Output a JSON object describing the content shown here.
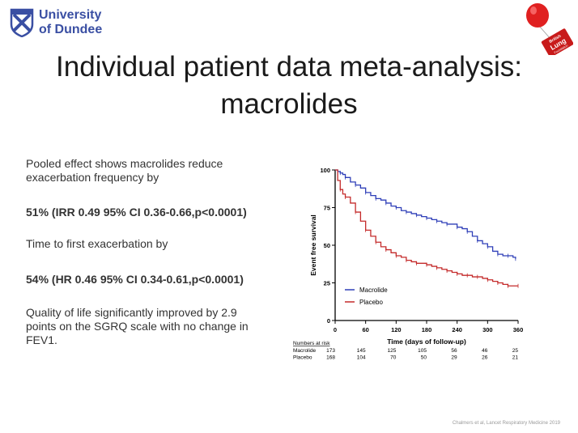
{
  "header": {
    "university_line1": "University",
    "university_line2": "of Dundee",
    "blf_line1": "British",
    "blf_line2": "Lung",
    "blf_line3": "Foundation"
  },
  "title": {
    "line1": "Individual patient data meta-analysis:",
    "line2": "macrolides"
  },
  "body": {
    "p1": "Pooled effect shows macrolides reduce exacerbation frequency by",
    "p2": "51% (IRR 0.49 95% CI 0.36-0.66,p<0.0001)",
    "p3": "Time to first exacerbation by",
    "p4": "54% (HR 0.46 95% CI 0.34-0.61,p<0.0001)",
    "p5": "Quality of life significantly improved by 2.9 points on the SGRQ scale with no change in FEV1."
  },
  "footer": {
    "citation": "Chalmers et al, Lancet Respiratory Medicine 2019"
  },
  "chart_data": {
    "type": "line",
    "xlabel": "Time (days of follow-up)",
    "ylabel": "Event free survival",
    "xlim": [
      0,
      360
    ],
    "ylim": [
      0,
      100
    ],
    "xticks": [
      0,
      60,
      120,
      180,
      240,
      300,
      360
    ],
    "yticks": [
      0,
      25,
      50,
      75,
      100
    ],
    "legend_position": "bottom-left",
    "grid": false,
    "series": [
      {
        "name": "Macrolide",
        "color": "#2f3fb8",
        "x": [
          0,
          5,
          10,
          15,
          20,
          30,
          40,
          50,
          60,
          70,
          80,
          90,
          100,
          110,
          120,
          130,
          140,
          150,
          160,
          170,
          180,
          190,
          200,
          210,
          220,
          230,
          240,
          250,
          260,
          270,
          280,
          290,
          300,
          310,
          320,
          330,
          340,
          350,
          355
        ],
        "y": [
          100,
          99,
          98,
          97,
          95,
          92,
          90,
          88,
          85,
          83,
          81,
          80,
          78,
          76,
          75,
          73,
          72,
          71,
          70,
          69,
          68,
          67,
          66,
          65,
          64,
          64,
          62,
          61,
          59,
          56,
          53,
          51,
          49,
          46,
          44,
          43,
          43,
          42,
          41
        ]
      },
      {
        "name": "Placebo",
        "color": "#c42a2a",
        "x": [
          0,
          5,
          10,
          15,
          20,
          30,
          40,
          50,
          60,
          70,
          80,
          90,
          100,
          110,
          120,
          130,
          140,
          150,
          160,
          170,
          180,
          190,
          200,
          210,
          220,
          230,
          240,
          250,
          260,
          270,
          280,
          290,
          300,
          310,
          320,
          330,
          340,
          350,
          360
        ],
        "y": [
          100,
          93,
          87,
          84,
          82,
          78,
          72,
          66,
          60,
          56,
          52,
          49,
          47,
          45,
          43,
          42,
          40,
          39,
          38,
          38,
          37,
          36,
          35,
          34,
          33,
          32,
          31,
          30,
          30,
          29,
          29,
          28,
          27,
          26,
          25,
          24,
          23,
          23,
          23
        ]
      }
    ],
    "risk_table": {
      "title": "Numbers at risk",
      "rows": [
        {
          "label": "Macrolide",
          "values": [
            173,
            145,
            125,
            105,
            56,
            46,
            25
          ]
        },
        {
          "label": "Placebo",
          "values": [
            168,
            104,
            70,
            50,
            29,
            26,
            21
          ]
        }
      ]
    }
  }
}
